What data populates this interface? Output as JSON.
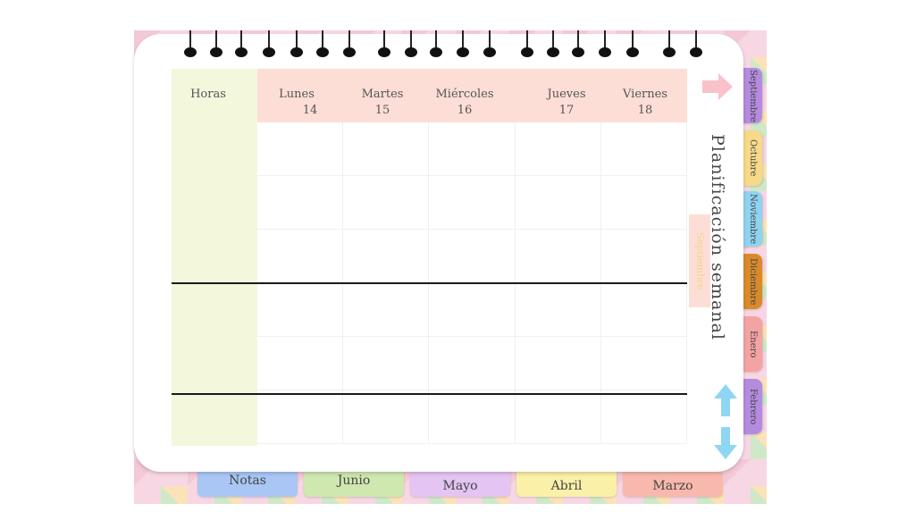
{
  "planner": {
    "title": "Planificación semanal",
    "month_badge": "Septiembre",
    "hours_label": "Horas",
    "days": [
      {
        "name": "Lunes",
        "date": "14"
      },
      {
        "name": "Martes",
        "date": "15"
      },
      {
        "name": "Miércoles",
        "date": "16"
      },
      {
        "name": "Jueves",
        "date": "17"
      },
      {
        "name": "Viernes",
        "date": "18"
      }
    ]
  },
  "side_tabs": [
    {
      "label": "Septiembre",
      "color": "#b58be0"
    },
    {
      "label": "Octubre",
      "color": "#f7d98a"
    },
    {
      "label": "Noviembre",
      "color": "#8fd3f1"
    },
    {
      "label": "Diciembre",
      "color": "#d98b2b"
    },
    {
      "label": "Enero",
      "color": "#f4a3a3"
    },
    {
      "label": "Febrero",
      "color": "#b58be0"
    }
  ],
  "bottom_tabs": [
    {
      "label": "Notas",
      "color": "#a9c6f5"
    },
    {
      "label": "Junio",
      "color": "#cfe8b0"
    },
    {
      "label": "Mayo",
      "color": "#e4c4f2"
    },
    {
      "label": "Abril",
      "color": "#fbf0a8"
    },
    {
      "label": "Marzo",
      "color": "#f9b8ad"
    }
  ],
  "icons": {
    "next_arrow": "arrow-right-icon",
    "scroll_up": "arrow-up-icon",
    "scroll_down": "arrow-down-icon"
  },
  "colors": {
    "header_bg": "#fcded6",
    "hours_bg": "#f3f7dc",
    "arrow_pink": "#f9c1c9",
    "arrow_blue": "#8fd6f5"
  }
}
